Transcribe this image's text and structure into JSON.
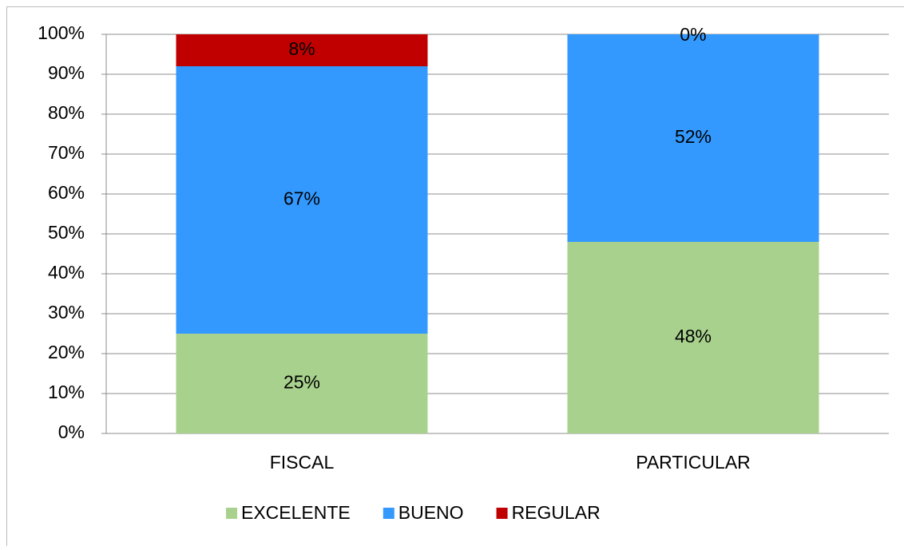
{
  "chart_data": {
    "type": "stacked_bar",
    "categories": [
      "FISCAL",
      "PARTICULAR"
    ],
    "series": [
      {
        "name": "EXCELENTE",
        "color": "#a9d18e",
        "values": [
          25,
          48
        ],
        "value_labels": [
          "25%",
          "48%"
        ]
      },
      {
        "name": "BUENO",
        "color": "#3399ff",
        "values": [
          67,
          52
        ],
        "value_labels": [
          "67%",
          "52%"
        ]
      },
      {
        "name": "REGULAR",
        "color": "#c00000",
        "values": [
          8,
          0
        ],
        "value_labels": [
          "8%",
          "0%"
        ]
      }
    ],
    "ylim": [
      0,
      100
    ],
    "yticks": [
      {
        "value": 0,
        "label": "0%"
      },
      {
        "value": 10,
        "label": "10%"
      },
      {
        "value": 20,
        "label": "20%"
      },
      {
        "value": 30,
        "label": "30%"
      },
      {
        "value": 40,
        "label": "40%"
      },
      {
        "value": 50,
        "label": "50%"
      },
      {
        "value": 60,
        "label": "60%"
      },
      {
        "value": 70,
        "label": "70%"
      },
      {
        "value": 80,
        "label": "80%"
      },
      {
        "value": 90,
        "label": "90%"
      },
      {
        "value": 100,
        "label": "100%"
      }
    ],
    "grid": true,
    "legend": "bottom"
  }
}
